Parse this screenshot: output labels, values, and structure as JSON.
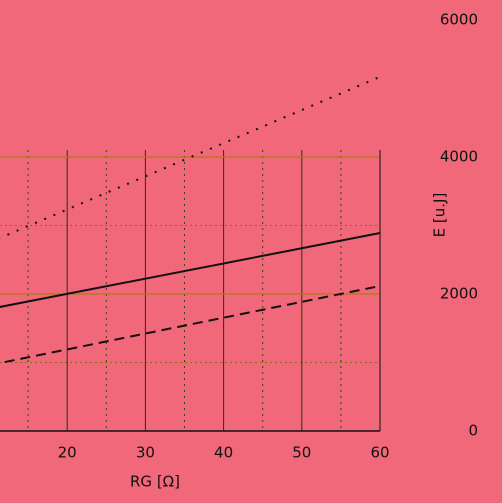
{
  "chart_data": {
    "type": "line",
    "x_label": "RG [Ω]",
    "y_label": "E [u.J]",
    "x": [
      10,
      60
    ],
    "series": [
      {
        "color": "#111111",
        "style": "solid",
        "values": [
          1780,
          2890
        ]
      },
      {
        "color": "#111111",
        "style": "dashed",
        "values": [
          960,
          2117
        ]
      },
      {
        "color": "#111111",
        "style": "dotted",
        "values": [
          2750,
          5170
        ]
      }
    ],
    "xlim": [
      10,
      60
    ],
    "xticks": [
      20,
      30,
      40,
      50,
      60
    ],
    "ylim": [
      0,
      6000
    ],
    "yticks": [
      0,
      2000,
      4000,
      6000
    ],
    "grid": true
  }
}
